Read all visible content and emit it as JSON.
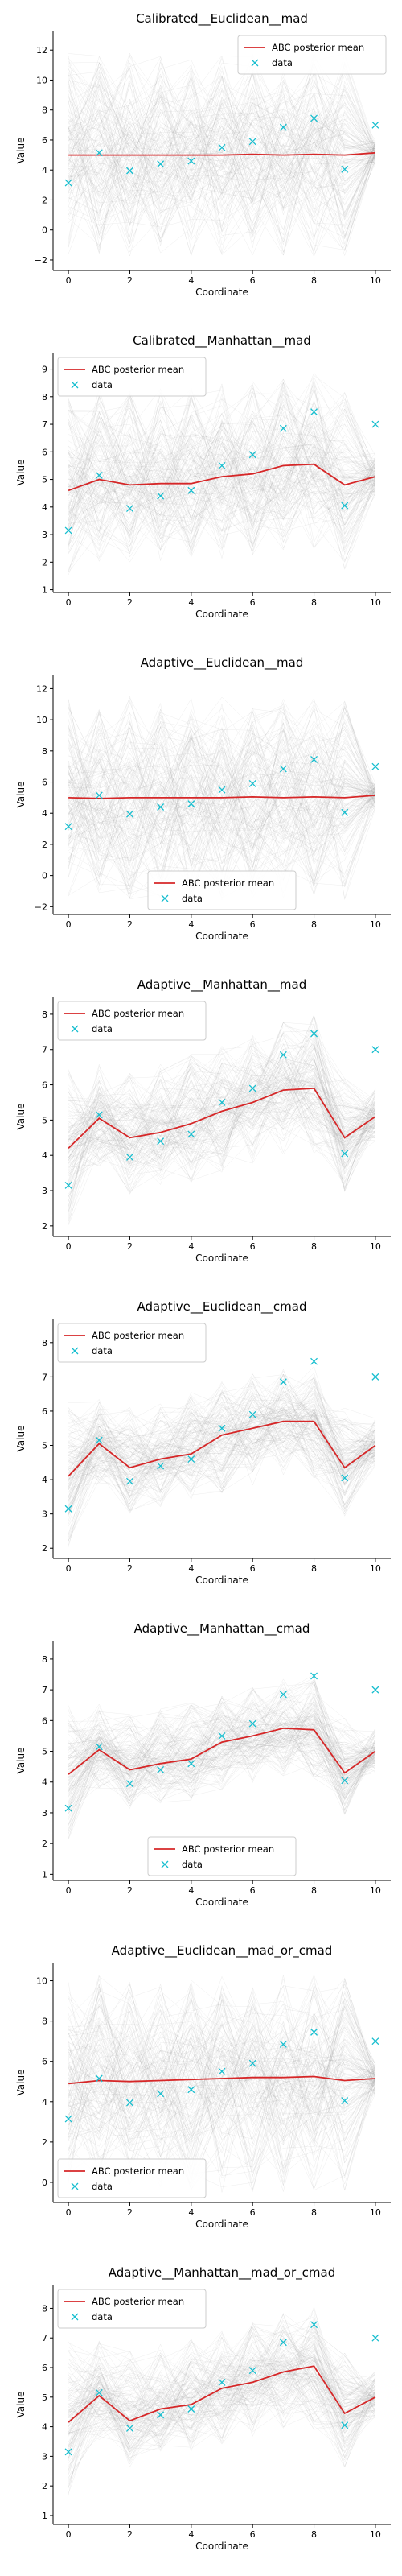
{
  "legend_labels": {
    "mean": "ABC posterior mean",
    "data": "data"
  },
  "colors": {
    "mean": "#d62728",
    "data": "#17becf",
    "samples": "#9a9a9a"
  },
  "chart_data": [
    {
      "type": "line",
      "title": "Calibrated__Euclidean__mad",
      "xlabel": "Coordinate",
      "ylabel": "Value",
      "x": [
        0,
        1,
        2,
        3,
        4,
        5,
        6,
        7,
        8,
        9,
        10
      ],
      "series": [
        {
          "name": "ABC posterior mean",
          "values": [
            5.0,
            5.0,
            5.0,
            5.0,
            5.0,
            5.0,
            5.05,
            5.0,
            5.05,
            5.0,
            5.15
          ]
        },
        {
          "name": "data",
          "values": [
            3.15,
            5.15,
            3.95,
            4.4,
            4.6,
            5.5,
            5.9,
            6.85,
            7.45,
            4.05,
            7.0
          ]
        }
      ],
      "band": {
        "lower": [
          -1.8,
          -1.8,
          -1.8,
          -1.8,
          -1.8,
          -1.8,
          -1.8,
          -1.8,
          -1.8,
          -1.8,
          4.3
        ],
        "upper": [
          11.8,
          11.8,
          11.8,
          11.8,
          11.8,
          11.8,
          11.8,
          11.8,
          11.8,
          11.8,
          6.0
        ]
      },
      "xlim": [
        -0.5,
        10.5
      ],
      "ylim": [
        -2.7,
        13.3
      ],
      "xticks": [
        0,
        2,
        4,
        6,
        8,
        10
      ],
      "yticks": [
        -2,
        0,
        2,
        4,
        6,
        8,
        10,
        12
      ],
      "legend": "upper right"
    },
    {
      "type": "line",
      "title": "Calibrated__Manhattan__mad",
      "xlabel": "Coordinate",
      "ylabel": "Value",
      "x": [
        0,
        1,
        2,
        3,
        4,
        5,
        6,
        7,
        8,
        9,
        10
      ],
      "series": [
        {
          "name": "ABC posterior mean",
          "values": [
            4.6,
            5.0,
            4.8,
            4.85,
            4.85,
            5.1,
            5.2,
            5.5,
            5.55,
            4.8,
            5.1
          ]
        },
        {
          "name": "data",
          "values": [
            3.15,
            5.15,
            3.95,
            4.4,
            4.6,
            5.5,
            5.9,
            6.85,
            7.45,
            4.05,
            7.0
          ]
        }
      ],
      "band": {
        "lower": [
          1.5,
          2.0,
          1.9,
          1.9,
          2.0,
          2.1,
          2.2,
          2.4,
          2.4,
          1.7,
          4.4
        ],
        "upper": [
          8.1,
          8.3,
          8.3,
          8.3,
          8.4,
          8.5,
          8.6,
          8.8,
          8.9,
          8.2,
          6.0
        ]
      },
      "xlim": [
        -0.5,
        10.5
      ],
      "ylim": [
        0.9,
        9.6
      ],
      "xticks": [
        0,
        2,
        4,
        6,
        8,
        10
      ],
      "yticks": [
        1,
        2,
        3,
        4,
        5,
        6,
        7,
        8,
        9
      ],
      "legend": "upper left"
    },
    {
      "type": "line",
      "title": "Adaptive__Euclidean__mad",
      "xlabel": "Coordinate",
      "ylabel": "Value",
      "x": [
        0,
        1,
        2,
        3,
        4,
        5,
        6,
        7,
        8,
        9,
        10
      ],
      "series": [
        {
          "name": "ABC posterior mean",
          "values": [
            5.0,
            4.95,
            5.0,
            5.0,
            5.0,
            5.0,
            5.05,
            5.0,
            5.05,
            5.0,
            5.15
          ]
        },
        {
          "name": "data",
          "values": [
            3.15,
            5.15,
            3.95,
            4.4,
            4.6,
            5.5,
            5.9,
            6.85,
            7.45,
            4.05,
            7.0
          ]
        }
      ],
      "band": {
        "lower": [
          -1.6,
          -1.6,
          -1.6,
          -1.6,
          -1.6,
          -1.6,
          -1.6,
          -1.6,
          -1.6,
          -1.6,
          4.3
        ],
        "upper": [
          11.5,
          11.5,
          11.5,
          11.5,
          11.5,
          11.5,
          11.5,
          11.5,
          11.5,
          11.5,
          6.0
        ]
      },
      "xlim": [
        -0.5,
        10.5
      ],
      "ylim": [
        -2.5,
        12.9
      ],
      "xticks": [
        0,
        2,
        4,
        6,
        8,
        10
      ],
      "yticks": [
        -2,
        0,
        2,
        4,
        6,
        8,
        10,
        12
      ],
      "legend": "lower center"
    },
    {
      "type": "line",
      "title": "Adaptive__Manhattan__mad",
      "xlabel": "Coordinate",
      "ylabel": "Value",
      "x": [
        0,
        1,
        2,
        3,
        4,
        5,
        6,
        7,
        8,
        9,
        10
      ],
      "series": [
        {
          "name": "ABC posterior mean",
          "values": [
            4.2,
            5.05,
            4.5,
            4.65,
            4.9,
            5.25,
            5.5,
            5.85,
            5.9,
            4.5,
            5.1
          ]
        },
        {
          "name": "data",
          "values": [
            3.15,
            5.15,
            3.95,
            4.4,
            4.6,
            5.5,
            5.9,
            6.85,
            7.45,
            4.05,
            7.0
          ]
        }
      ],
      "band": {
        "lower": [
          2.0,
          3.6,
          2.9,
          3.1,
          3.2,
          3.5,
          3.7,
          4.0,
          4.0,
          2.9,
          4.4
        ],
        "upper": [
          6.5,
          6.6,
          6.4,
          6.6,
          6.9,
          7.1,
          7.4,
          7.8,
          8.0,
          6.2,
          5.9
        ]
      },
      "xlim": [
        -0.5,
        10.5
      ],
      "ylim": [
        1.7,
        8.5
      ],
      "xticks": [
        0,
        2,
        4,
        6,
        8,
        10
      ],
      "yticks": [
        2,
        3,
        4,
        5,
        6,
        7,
        8
      ],
      "legend": "upper left"
    },
    {
      "type": "line",
      "title": "Adaptive__Euclidean__cmad",
      "xlabel": "Coordinate",
      "ylabel": "Value",
      "x": [
        0,
        1,
        2,
        3,
        4,
        5,
        6,
        7,
        8,
        9,
        10
      ],
      "series": [
        {
          "name": "ABC posterior mean",
          "values": [
            4.1,
            5.05,
            4.35,
            4.6,
            4.75,
            5.3,
            5.5,
            5.7,
            5.7,
            4.35,
            5.0
          ]
        },
        {
          "name": "data",
          "values": [
            3.15,
            5.15,
            3.95,
            4.4,
            4.6,
            5.5,
            5.9,
            6.85,
            7.45,
            4.05,
            7.0
          ]
        }
      ],
      "band": {
        "lower": [
          2.0,
          3.8,
          3.0,
          3.2,
          3.3,
          3.6,
          3.8,
          4.1,
          4.0,
          2.9,
          4.4
        ],
        "upper": [
          6.3,
          6.4,
          6.2,
          6.3,
          6.6,
          6.9,
          7.1,
          7.3,
          7.4,
          6.1,
          5.8
        ]
      },
      "xlim": [
        -0.5,
        10.5
      ],
      "ylim": [
        1.7,
        8.7
      ],
      "xticks": [
        0,
        2,
        4,
        6,
        8,
        10
      ],
      "yticks": [
        2,
        3,
        4,
        5,
        6,
        7,
        8
      ],
      "legend": "upper left"
    },
    {
      "type": "line",
      "title": "Adaptive__Manhattan__cmad",
      "xlabel": "Coordinate",
      "ylabel": "Value",
      "x": [
        0,
        1,
        2,
        3,
        4,
        5,
        6,
        7,
        8,
        9,
        10
      ],
      "series": [
        {
          "name": "ABC posterior mean",
          "values": [
            4.25,
            5.05,
            4.4,
            4.6,
            4.75,
            5.3,
            5.5,
            5.75,
            5.7,
            4.3,
            5.0
          ]
        },
        {
          "name": "data",
          "values": [
            3.15,
            5.15,
            3.95,
            4.4,
            4.6,
            5.5,
            5.9,
            6.85,
            7.45,
            4.05,
            7.0
          ]
        }
      ],
      "band": {
        "lower": [
          2.1,
          3.8,
          3.1,
          3.3,
          3.4,
          3.7,
          3.9,
          4.2,
          4.0,
          2.9,
          4.3
        ],
        "upper": [
          6.5,
          6.6,
          6.3,
          6.4,
          6.6,
          6.9,
          7.1,
          7.4,
          7.5,
          6.1,
          5.8
        ]
      },
      "xlim": [
        -0.5,
        10.5
      ],
      "ylim": [
        0.8,
        8.6
      ],
      "xticks": [
        0,
        2,
        4,
        6,
        8,
        10
      ],
      "yticks": [
        1,
        2,
        3,
        4,
        5,
        6,
        7,
        8
      ],
      "legend": "lower center"
    },
    {
      "type": "line",
      "title": "Adaptive__Euclidean__mad_or_cmad",
      "xlabel": "Coordinate",
      "ylabel": "Value",
      "x": [
        0,
        1,
        2,
        3,
        4,
        5,
        6,
        7,
        8,
        9,
        10
      ],
      "series": [
        {
          "name": "ABC posterior mean",
          "values": [
            4.9,
            5.05,
            5.0,
            5.05,
            5.1,
            5.15,
            5.2,
            5.2,
            5.25,
            5.05,
            5.15
          ]
        },
        {
          "name": "data",
          "values": [
            3.15,
            5.15,
            3.95,
            4.4,
            4.6,
            5.5,
            5.9,
            6.85,
            7.45,
            4.05,
            7.0
          ]
        }
      ],
      "band": {
        "lower": [
          -0.5,
          -0.5,
          -0.5,
          -0.5,
          -0.5,
          -0.5,
          -0.5,
          -0.5,
          -0.5,
          -0.5,
          4.3
        ],
        "upper": [
          10.3,
          10.3,
          10.3,
          10.3,
          10.3,
          10.3,
          10.3,
          10.3,
          10.3,
          10.3,
          6.0
        ]
      },
      "xlim": [
        -0.5,
        10.5
      ],
      "ylim": [
        -1.0,
        10.9
      ],
      "xticks": [
        0,
        2,
        4,
        6,
        8,
        10
      ],
      "yticks": [
        0,
        2,
        4,
        6,
        8,
        10
      ],
      "legend": "lower left"
    },
    {
      "type": "line",
      "title": "Adaptive__Manhattan__mad_or_cmad",
      "xlabel": "Coordinate",
      "ylabel": "Value",
      "x": [
        0,
        1,
        2,
        3,
        4,
        5,
        6,
        7,
        8,
        9,
        10
      ],
      "series": [
        {
          "name": "ABC posterior mean",
          "values": [
            4.15,
            5.05,
            4.2,
            4.6,
            4.75,
            5.3,
            5.5,
            5.85,
            6.05,
            4.45,
            5.0
          ]
        },
        {
          "name": "data",
          "values": [
            3.15,
            5.15,
            3.95,
            4.4,
            4.6,
            5.5,
            5.9,
            6.85,
            7.45,
            4.05,
            7.0
          ]
        }
      ],
      "band": {
        "lower": [
          1.6,
          3.5,
          2.6,
          3.0,
          3.1,
          3.4,
          3.6,
          3.9,
          3.9,
          2.6,
          4.3
        ],
        "upper": [
          6.9,
          6.9,
          6.6,
          6.8,
          7.0,
          7.3,
          7.6,
          7.9,
          8.1,
          6.5,
          5.9
        ]
      },
      "xlim": [
        -0.5,
        10.5
      ],
      "ylim": [
        0.7,
        8.8
      ],
      "xticks": [
        0,
        2,
        4,
        6,
        8,
        10
      ],
      "yticks": [
        1,
        2,
        3,
        4,
        5,
        6,
        7,
        8
      ],
      "legend": "upper left"
    }
  ]
}
